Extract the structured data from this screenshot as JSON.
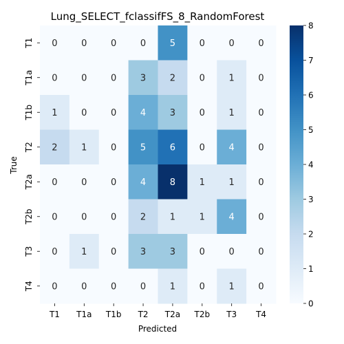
{
  "chart_data": {
    "type": "heatmap",
    "title": "Lung_SELECT_fclassifFS_8_RandomForest",
    "xlabel": "Predicted",
    "ylabel": "True",
    "x_categories": [
      "T1",
      "T1a",
      "T1b",
      "T2",
      "T2a",
      "T2b",
      "T3",
      "T4"
    ],
    "y_categories": [
      "T1",
      "T1a",
      "T1b",
      "T2",
      "T2a",
      "T2b",
      "T3",
      "T4"
    ],
    "values": [
      [
        0,
        0,
        0,
        0,
        5,
        0,
        0,
        0
      ],
      [
        0,
        0,
        0,
        3,
        2,
        0,
        1,
        0
      ],
      [
        1,
        0,
        0,
        4,
        3,
        0,
        1,
        0
      ],
      [
        2,
        1,
        0,
        5,
        6,
        0,
        4,
        0
      ],
      [
        0,
        0,
        0,
        4,
        8,
        1,
        1,
        0
      ],
      [
        0,
        0,
        0,
        2,
        1,
        1,
        4,
        0
      ],
      [
        0,
        1,
        0,
        3,
        3,
        0,
        0,
        0
      ],
      [
        0,
        0,
        0,
        0,
        1,
        0,
        1,
        0
      ]
    ],
    "colorbar": {
      "min": 0,
      "max": 8,
      "ticks": [
        0,
        1,
        2,
        3,
        4,
        5,
        6,
        7,
        8
      ],
      "colormap": "Blues"
    }
  }
}
